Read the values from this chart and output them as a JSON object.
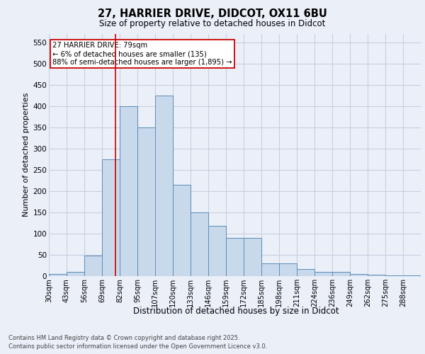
{
  "title1": "27, HARRIER DRIVE, DIDCOT, OX11 6BU",
  "title2": "Size of property relative to detached houses in Didcot",
  "xlabel": "Distribution of detached houses by size in Didcot",
  "ylabel": "Number of detached properties",
  "bin_labels": [
    "30sqm",
    "43sqm",
    "56sqm",
    "69sqm",
    "82sqm",
    "95sqm",
    "107sqm",
    "120sqm",
    "133sqm",
    "146sqm",
    "159sqm",
    "172sqm",
    "185sqm",
    "198sqm",
    "211sqm",
    "224sqm",
    "236sqm",
    "249sqm",
    "262sqm",
    "275sqm",
    "288sqm"
  ],
  "bin_edges": [
    30,
    43,
    56,
    69,
    82,
    95,
    107,
    120,
    133,
    146,
    159,
    172,
    185,
    198,
    211,
    224,
    236,
    249,
    262,
    275,
    288,
    301
  ],
  "bar_heights": [
    5,
    10,
    48,
    275,
    400,
    350,
    425,
    215,
    150,
    118,
    90,
    90,
    30,
    30,
    17,
    10,
    10,
    5,
    3,
    2,
    2
  ],
  "bar_color": "#c9d9ec",
  "bar_edge_color": "#5b8db8",
  "grid_color": "#c8cfe0",
  "bg_color": "#eaeff8",
  "red_line_x": 79,
  "annotation_text": "27 HARRIER DRIVE: 79sqm\n← 6% of detached houses are smaller (135)\n88% of semi-detached houses are larger (1,895) →",
  "annotation_box_color": "#ffffff",
  "annotation_box_edge": "#cc0000",
  "ylim": [
    0,
    570
  ],
  "yticks": [
    0,
    50,
    100,
    150,
    200,
    250,
    300,
    350,
    400,
    450,
    500,
    550
  ],
  "footer1": "Contains HM Land Registry data © Crown copyright and database right 2025.",
  "footer2": "Contains public sector information licensed under the Open Government Licence v3.0."
}
